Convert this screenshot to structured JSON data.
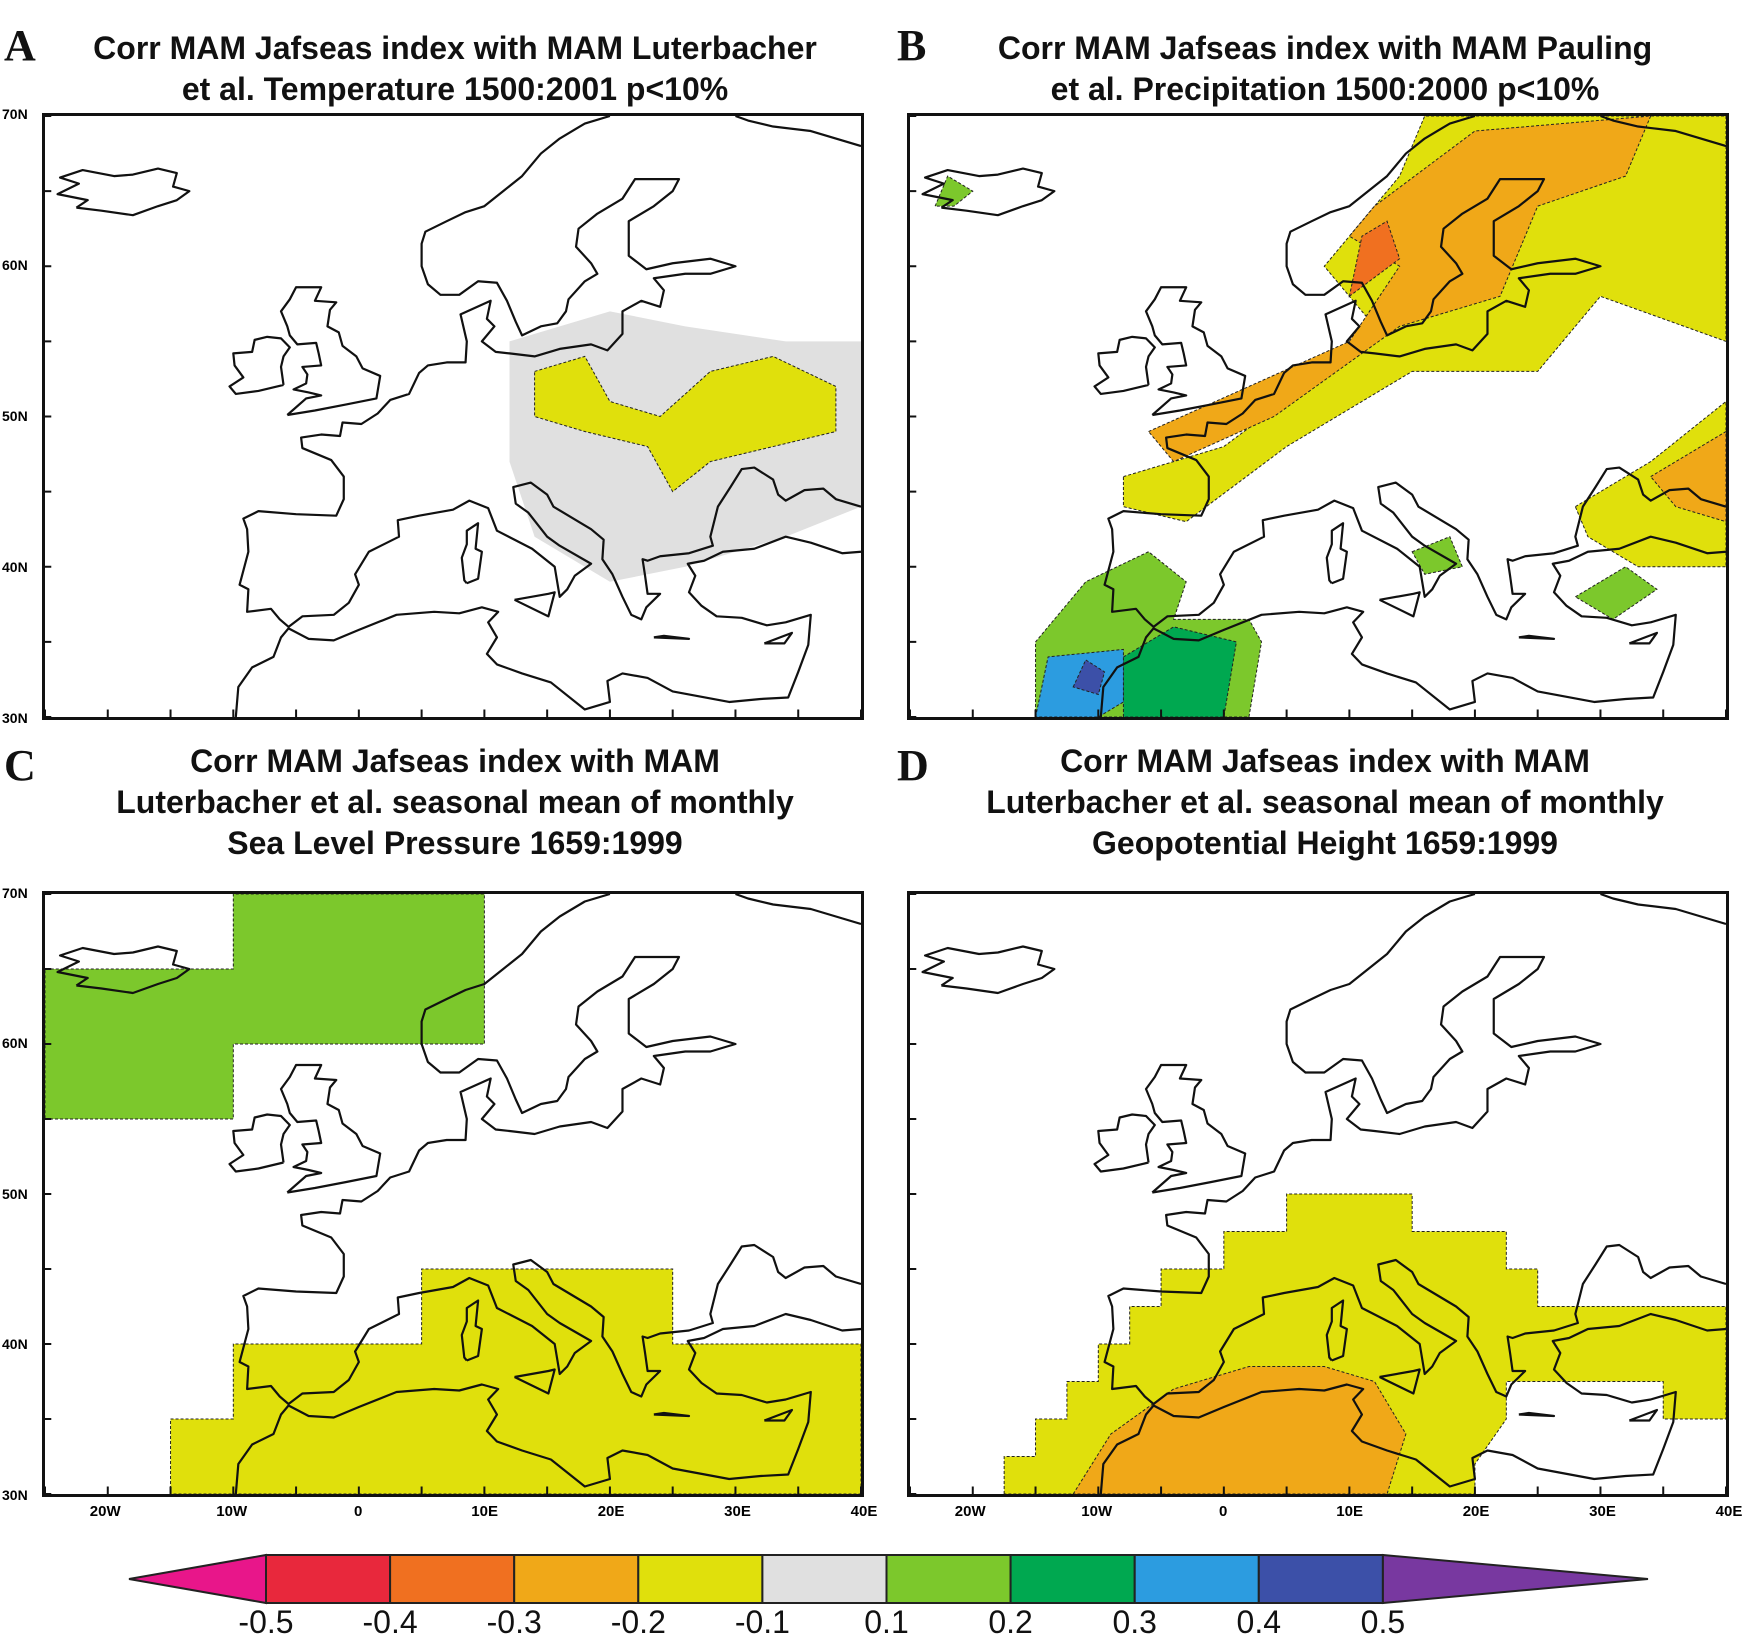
{
  "panels": [
    {
      "letter": "A",
      "title": [
        "Corr MAM Jafseas index with MAM Luterbacher",
        "et al. Temperature 1500:2001 p<10%"
      ],
      "regions": [
        {
          "level": "0.1",
          "pts": [
            [
              12,
              55
            ],
            [
              20,
              57
            ],
            [
              26,
              56
            ],
            [
              34,
              55
            ],
            [
              40,
              55
            ],
            [
              40,
              44
            ],
            [
              34,
              42
            ],
            [
              26,
              40
            ],
            [
              20,
              39
            ],
            [
              14,
              42
            ],
            [
              12,
              47
            ]
          ]
        },
        {
          "level": "-0.2",
          "pts": [
            [
              14,
              53
            ],
            [
              18,
              54
            ],
            [
              20,
              51
            ],
            [
              24,
              50
            ],
            [
              28,
              53
            ],
            [
              33,
              54
            ],
            [
              38,
              52
            ],
            [
              38,
              49
            ],
            [
              33,
              48
            ],
            [
              28,
              47
            ],
            [
              25,
              45
            ],
            [
              23,
              48
            ],
            [
              18,
              49
            ],
            [
              14,
              50
            ]
          ]
        }
      ]
    },
    {
      "letter": "B",
      "title": [
        "Corr MAM Jafseas index with MAM Pauling",
        "et al. Precipitation 1500:2000 p<10%"
      ],
      "regions": [
        {
          "level": "-0.2",
          "pts": [
            [
              -8,
              46
            ],
            [
              0,
              48
            ],
            [
              8,
              53
            ],
            [
              12,
              56
            ],
            [
              8,
              60
            ],
            [
              14,
              66
            ],
            [
              16,
              70
            ],
            [
              40,
              70
            ],
            [
              40,
              55
            ],
            [
              30,
              58
            ],
            [
              25,
              53
            ],
            [
              15,
              53
            ],
            [
              5,
              48
            ],
            [
              -3,
              43
            ],
            [
              -8,
              44
            ]
          ]
        },
        {
          "level": "-0.3",
          "pts": [
            [
              -6,
              49
            ],
            [
              2,
              52
            ],
            [
              10,
              55
            ],
            [
              14,
              60
            ],
            [
              10,
              62
            ],
            [
              12,
              64
            ],
            [
              20,
              69
            ],
            [
              34,
              70
            ],
            [
              32,
              66
            ],
            [
              25,
              64
            ],
            [
              22,
              58
            ],
            [
              14,
              56
            ],
            [
              4,
              50
            ],
            [
              -4,
              47
            ]
          ]
        },
        {
          "level": "-0.4",
          "pts": [
            [
              10,
              58
            ],
            [
              14,
              60.5
            ],
            [
              13,
              63
            ],
            [
              11,
              62
            ]
          ]
        },
        {
          "level": "-0.2",
          "pts": [
            [
              28,
              44
            ],
            [
              34,
              47
            ],
            [
              40,
              51
            ],
            [
              40,
              40
            ],
            [
              33,
              40
            ],
            [
              29,
              42
            ]
          ]
        },
        {
          "level": "-0.3",
          "pts": [
            [
              34,
              46
            ],
            [
              40,
              49
            ],
            [
              40,
              43
            ],
            [
              36,
              44
            ]
          ]
        },
        {
          "level": "0.2",
          "pts": [
            [
              -15,
              30
            ],
            [
              -15,
              35
            ],
            [
              -11,
              39
            ],
            [
              -6,
              41
            ],
            [
              -3,
              39
            ],
            [
              -4,
              36.5
            ],
            [
              2,
              36.5
            ],
            [
              3,
              35
            ],
            [
              2,
              30
            ]
          ]
        },
        {
          "level": "0.3",
          "pts": [
            [
              -8,
              30
            ],
            [
              -8,
              34
            ],
            [
              -4,
              36
            ],
            [
              1,
              35
            ],
            [
              0,
              30
            ]
          ]
        },
        {
          "level": "0.4",
          "pts": [
            [
              -15,
              30
            ],
            [
              -14,
              34
            ],
            [
              -8,
              34.5
            ],
            [
              -8,
              31
            ],
            [
              -10,
              30
            ]
          ]
        },
        {
          "level": "0.5",
          "pts": [
            [
              -12,
              32
            ],
            [
              -11,
              33.8
            ],
            [
              -9.5,
              33
            ],
            [
              -10,
              31.5
            ]
          ]
        },
        {
          "level": "0.2",
          "pts": [
            [
              28,
              38
            ],
            [
              32,
              40
            ],
            [
              34.5,
              38.5
            ],
            [
              31,
              36.5
            ]
          ]
        },
        {
          "level": "0.2",
          "pts": [
            [
              15,
              41
            ],
            [
              18,
              42
            ],
            [
              19,
              40
            ],
            [
              16,
              39.5
            ]
          ]
        },
        {
          "level": "0.2",
          "pts": [
            [
              -23,
              64
            ],
            [
              -22,
              66
            ],
            [
              -20,
              65
            ],
            [
              -21.5,
              64
            ]
          ]
        }
      ]
    },
    {
      "letter": "C",
      "title": [
        "Corr MAM Jafseas index with MAM",
        "Luterbacher et al. seasonal mean of monthly",
        "Sea Level Pressure 1659:1999"
      ],
      "regions": [
        {
          "level": "0.2",
          "pts": [
            [
              -25,
              55
            ],
            [
              -10,
              55
            ],
            [
              -10,
              60
            ],
            [
              10,
              60
            ],
            [
              10,
              70
            ],
            [
              -10,
              70
            ],
            [
              -10,
              65
            ],
            [
              -25,
              65
            ]
          ]
        },
        {
          "level": "-0.2",
          "pts": [
            [
              -15,
              30
            ],
            [
              -15,
              35
            ],
            [
              -10,
              35
            ],
            [
              -10,
              40
            ],
            [
              5,
              40
            ],
            [
              5,
              45
            ],
            [
              25,
              45
            ],
            [
              25,
              40
            ],
            [
              40,
              40
            ],
            [
              40,
              30
            ]
          ]
        }
      ]
    },
    {
      "letter": "D",
      "title": [
        "Corr MAM Jafseas index with MAM",
        "Luterbacher et al. seasonal mean of monthly",
        "Geopotential Height 1659:1999"
      ],
      "regions": [
        {
          "level": "-0.2",
          "pts": [
            [
              -17.5,
              30
            ],
            [
              -17.5,
              32.5
            ],
            [
              -15,
              32.5
            ],
            [
              -15,
              35
            ],
            [
              -12.5,
              35
            ],
            [
              -12.5,
              37.5
            ],
            [
              -10,
              37.5
            ],
            [
              -10,
              40
            ],
            [
              -7.5,
              40
            ],
            [
              -7.5,
              42.5
            ],
            [
              -5,
              42.5
            ],
            [
              -5,
              45
            ],
            [
              0,
              45
            ],
            [
              0,
              47.5
            ],
            [
              5,
              47.5
            ],
            [
              5,
              50
            ],
            [
              15,
              50
            ],
            [
              15,
              47.5
            ],
            [
              22.5,
              47.5
            ],
            [
              22.5,
              45
            ],
            [
              25,
              45
            ],
            [
              25,
              42.5
            ],
            [
              40,
              42.5
            ],
            [
              40,
              35
            ],
            [
              35,
              35
            ],
            [
              35,
              37.5
            ],
            [
              22.5,
              37.5
            ],
            [
              22.5,
              35
            ],
            [
              20,
              32
            ],
            [
              20,
              30
            ]
          ]
        },
        {
          "level": "-0.3",
          "pts": [
            [
              -12,
              30
            ],
            [
              -9,
              34
            ],
            [
              -4,
              37
            ],
            [
              2,
              38.5
            ],
            [
              8,
              38.5
            ],
            [
              12,
              37.5
            ],
            [
              14.5,
              34
            ],
            [
              13,
              30
            ]
          ]
        }
      ]
    }
  ],
  "lat_labels": [
    "70N",
    "60N",
    "50N",
    "40N",
    "30N"
  ],
  "lon_labels": [
    "20W",
    "10W",
    "0",
    "10E",
    "20E",
    "30E",
    "40E"
  ],
  "colorbar": {
    "labels": [
      "-0.5",
      "-0.4",
      "-0.3",
      "-0.2",
      "-0.1",
      "0.1",
      "0.2",
      "0.3",
      "0.4",
      "0.5"
    ],
    "colors": {
      "<-0.5": "#e8168a",
      "-0.5": "#e8283c",
      "-0.4": "#f07020",
      "-0.3": "#f0a818",
      "-0.2": "#e0e00c",
      "0.1": "#e0e0e0",
      "0.2": "#7cc82c",
      "0.3": "#00a850",
      "0.4": "#2c9ce0",
      "0.5": "#3c50a8",
      ">0.5": "#7838a0"
    },
    "order": [
      "<-0.5",
      "-0.5",
      "-0.4",
      "-0.3",
      "-0.2",
      "0.1",
      "0.2",
      "0.3",
      "0.4",
      "0.5",
      ">0.5"
    ]
  }
}
